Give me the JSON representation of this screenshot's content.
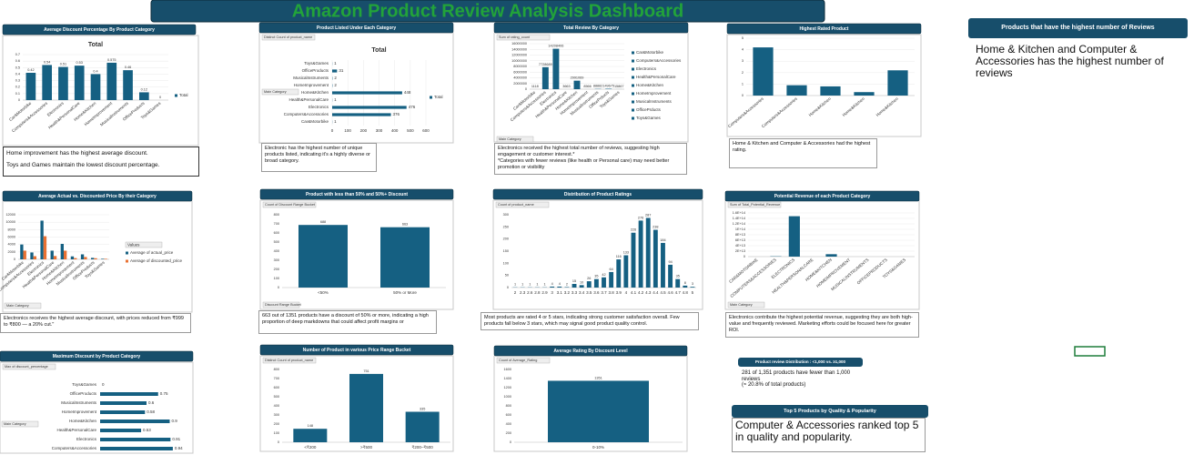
{
  "dashboard_title": "Amazon Product Review Analysis Dashboard",
  "chart_data": [
    {
      "type": "bar",
      "title": "Average Discount Percentage By Product Category",
      "subtitle": "Total",
      "categories": [
        "Car&Motorbike",
        "Computers&Accessories",
        "Electronics",
        "Health&PersonalCare",
        "Home&Kitchen",
        "HomeImprovement",
        "MusicalInstruments",
        "OfficeProducts",
        "Toys&Games"
      ],
      "series": [
        {
          "name": "Total",
          "color": "#156082",
          "values": [
            0.42,
            0.54,
            0.51,
            0.53,
            0.4,
            0.575,
            0.46,
            0.12,
            0
          ]
        }
      ],
      "ylim": [
        0,
        0.7
      ],
      "yticks": [
        0,
        0.1,
        0.2,
        0.3,
        0.4,
        0.5,
        0.6,
        0.7
      ],
      "grid": true,
      "data_labels": true,
      "legend": "right",
      "note": [
        "Home improvement has the highest average discount.",
        "Toys and Games maintain the lowest discount percentage."
      ]
    },
    {
      "type": "bar",
      "orientation": "horizontal",
      "title": "Product Listed Under Each Category",
      "subtitle": "Total",
      "field": "Distinct Count of product_name",
      "filter": "Main Category",
      "categories": [
        "Toys&Games",
        "OfficeProducts",
        "MusicalInstruments",
        "HomeImprovement",
        "Home&Kitchen",
        "Health&PersonalCare",
        "Electronics",
        "Computers&Accessories",
        "Car&Motorbike"
      ],
      "series": [
        {
          "name": "Total",
          "color": "#156082",
          "values": [
            1,
            31,
            2,
            2,
            448,
            1,
            476,
            376,
            1
          ]
        }
      ],
      "xlim": [
        0,
        600
      ],
      "xticks": [
        0,
        100,
        200,
        300,
        400,
        500,
        600
      ],
      "grid": true,
      "data_labels": true,
      "legend": "right",
      "note": [
        "Electronic has the highest number of unique products listed, indicating it's a highly diverse or broad category."
      ]
    },
    {
      "type": "bar",
      "title": "Total Review By Category",
      "field": "Sum of rating_count",
      "filter": "Main Category",
      "categories": [
        "Car&Motorbike",
        "Computers&Accessories",
        "Electronics",
        "Health&PersonalCare",
        "Home&Kitchen",
        "HomeImprovement",
        "MusicalInstruments",
        "OfficePrducts",
        "Toys&Games"
      ],
      "series": [
        {
          "color": "#156082",
          "values": [
            1118,
            7728689,
            14208406,
            3663,
            2991069,
            8566,
            88882,
            149675,
            15867
          ]
        }
      ],
      "ylim": [
        0,
        16000000
      ],
      "yticks": [
        0,
        2000000,
        4000000,
        6000000,
        8000000,
        10000000,
        12000000,
        14000000,
        16000000
      ],
      "grid": true,
      "data_labels": true,
      "legend": "categories",
      "note": [
        "Electronics received the highest total number of reviews, suggesting high engagement or customer interest.*",
        "*Categories with fewer reviews (like health or Personal care) may need better promotion or visibility"
      ]
    },
    {
      "type": "bar",
      "title": "Highest Rated Product",
      "categories": [
        "Computers&Accessories",
        "Computers&Accessories",
        "Home&Kitchen",
        "Home&Kitchen",
        "Home&Kitchen"
      ],
      "series": [
        {
          "color": "#156082",
          "values": [
            4.2,
            0.9,
            0.8,
            0.3,
            2.2
          ]
        }
      ],
      "ylim": [
        0,
        5
      ],
      "yticks": [
        0,
        1,
        2,
        3,
        4,
        5
      ],
      "grid": true,
      "note": [
        "Home & Kitchen and Computer & Accessories had the highest rating."
      ]
    },
    {
      "type": "bar",
      "title": "Average Actual vs. Discounted Price By their Category",
      "filter": "Main Category",
      "categories": [
        "Car&Motorbike",
        "Computers&Accessories",
        "Electronics",
        "Health&PersonalCare",
        "Home&Kitchen",
        "HomeImprovement",
        "MusicalInstruments",
        "OfficeProducts",
        "Toys&Games"
      ],
      "series": [
        {
          "name": "Average of actual_price",
          "color": "#156082",
          "values": [
            4000,
            1858,
            10418,
            2339,
            4162,
            799,
            1347,
            397,
            150
          ]
        },
        {
          "name": "Average of discounted_price",
          "color": "#e97132",
          "values": [
            2339,
            846,
            6225,
            899,
            2331,
            337,
            638,
            301,
            150
          ]
        }
      ],
      "ylim": [
        0,
        12000
      ],
      "yticks": [
        0,
        2000,
        4000,
        6000,
        8000,
        10000,
        12000
      ],
      "grid": true,
      "legend": "right",
      "legend_title": "Values",
      "note": [
        "Electronics receives the highest average discount, with prices reduced from ₹999 to ₹800 — a 20% cut.\""
      ]
    },
    {
      "type": "bar",
      "title": "Product with less than 50% and 50%+ Discount",
      "field": "Count of Discount Range Bucket",
      "filter": "Discount Range Bucket",
      "categories": [
        "<50%",
        "50% or More"
      ],
      "series": [
        {
          "color": "#156082",
          "values": [
            688,
            663
          ]
        }
      ],
      "ylim": [
        0,
        800
      ],
      "yticks": [
        0,
        100,
        200,
        300,
        400,
        500,
        600,
        700,
        800
      ],
      "data_labels": true,
      "note": [
        "663 out of 1351 products have a discount of 50% or more, indicating a high proportion of deep markdowns that could affect profit margins or"
      ]
    },
    {
      "type": "bar",
      "title": "Distribution of Product Ratings",
      "field": "Count of product_name",
      "categories": [
        "2",
        "2.3",
        "2.6",
        "2.8",
        "2.9",
        "3",
        "3.1",
        "3.2",
        "3.3",
        "3.4",
        "3.5",
        "3.6",
        "3.7",
        "3.8",
        "3.9",
        "4",
        "4.1",
        "4.2",
        "4.3",
        "4.4",
        "4.5",
        "4.6",
        "4.7",
        "4.8",
        "5"
      ],
      "series": [
        {
          "color": "#156082",
          "values": [
            1,
            1,
            1,
            1,
            1,
            4,
            4,
            2,
            15,
            10,
            26,
            35,
            42,
            64,
            116,
            133,
            226,
            276,
            287,
            238,
            184,
            94,
            35,
            8,
            3
          ]
        }
      ],
      "ylim": [
        0,
        300
      ],
      "yticks": [
        0,
        50,
        100,
        150,
        200,
        250,
        300
      ],
      "data_labels": true,
      "note": [
        "Most products are rated 4 or 5 stars, indicating strong customer satisfaction overall. Few products fall below 3 stars, which may signal good product quality control."
      ]
    },
    {
      "type": "bar",
      "title": "Potential Revenue of each Product Category",
      "field": "Sum of Total_Potential_Revenue",
      "filter": "Main Category",
      "categories": [
        "CAR&MOTORBIKE",
        "COMPUTERS&ACCESSORIES",
        "ELECTRONICS",
        "HEALTH&PERSONALCARE",
        "HOME&KITCHEN",
        "HOMEIMPROVEMENT",
        "MUSICALINSTRUMENTS",
        "OFFICEPRODUCTS",
        "TOYS&GAMES"
      ],
      "series": [
        {
          "color": "#156082",
          "values": [
            1457000000,
            1100000000000,
            148000000000000,
            5000000000,
            8900000000000,
            5000000000,
            1800000000,
            3300000000,
            1200000000
          ]
        }
      ],
      "ylim": [
        0,
        160000000000000
      ],
      "yticks": [
        0,
        {
          "value": 20000000000000,
          "label": "2E+13"
        },
        {
          "value": 40000000000000,
          "label": "4E+13"
        },
        {
          "value": 60000000000000,
          "label": "6E+13"
        },
        {
          "value": 80000000000000,
          "label": "8E+13"
        },
        {
          "value": 100000000000000,
          "label": "1E+14"
        },
        {
          "value": 120000000000000,
          "label": "1.2E+14"
        },
        {
          "value": 140000000000000,
          "label": "1.4E+14"
        },
        {
          "value": 160000000000000,
          "label": "1.6E+14"
        }
      ],
      "grid": true,
      "note": [
        "Electronics contribute the highest potential revenue, suggesting they are both high-value and frequently reviewed. Marketing efforts could be focused here for greater ROI."
      ]
    },
    {
      "type": "bar",
      "orientation": "horizontal",
      "title": "Maximum Discount by Product Category",
      "field": "Max of discount_percentage",
      "filter": "Main Category",
      "categories": [
        "Toys&Games",
        "OfficeProducts",
        "MusicalInstruments",
        "HomeImprovement",
        "Home&Kitchen",
        "Health&PersonalCare",
        "Electronics",
        "Computers&Accessories"
      ],
      "series": [
        {
          "color": "#156082",
          "values": [
            0,
            0.75,
            0.6,
            0.58,
            0.9,
            0.53,
            0.91,
            0.94
          ]
        }
      ],
      "xlim": [
        0,
        1
      ],
      "data_labels": true
    },
    {
      "type": "bar",
      "title": "Number of Product in various Price Range Bucket",
      "field": "Distinct Count of product_name",
      "categories": [
        "<₹200",
        ">₹500",
        "₹200–₹500"
      ],
      "series": [
        {
          "color": "#156082",
          "values": [
            148,
            751,
            335
          ]
        }
      ],
      "ylim": [
        0,
        800
      ],
      "yticks": [
        0,
        100,
        200,
        300,
        400,
        500,
        600,
        700,
        800
      ],
      "data_labels": true
    },
    {
      "type": "bar",
      "title": "Average Rating By Discount Level",
      "field": "Count of Average_Rating",
      "categories": [
        "0-10%"
      ],
      "series": [
        {
          "color": "#156082",
          "values": [
            1351
          ]
        }
      ],
      "ylim": [
        0,
        1600
      ],
      "yticks": [
        0,
        200,
        400,
        600,
        800,
        1000,
        1200,
        1400,
        1600
      ],
      "data_labels": true
    }
  ],
  "highlights": [
    {
      "title": "Products that have the highest number of Reviews",
      "text": [
        "Home & Kitchen and Computer & Accessories has the highest number of reviews"
      ]
    },
    {
      "title": "Product review Distribution : <1,000 vs. ≥1,000",
      "text": [
        "281 of 1,351 products have fewer than 1,000 reviews",
        "(≈ 20.8% of total products)"
      ]
    },
    {
      "title": "Top 5 Products by Quality & Popularity",
      "text": [
        "Computer & Accessories ranked top 5 in quality and popularity."
      ]
    }
  ]
}
